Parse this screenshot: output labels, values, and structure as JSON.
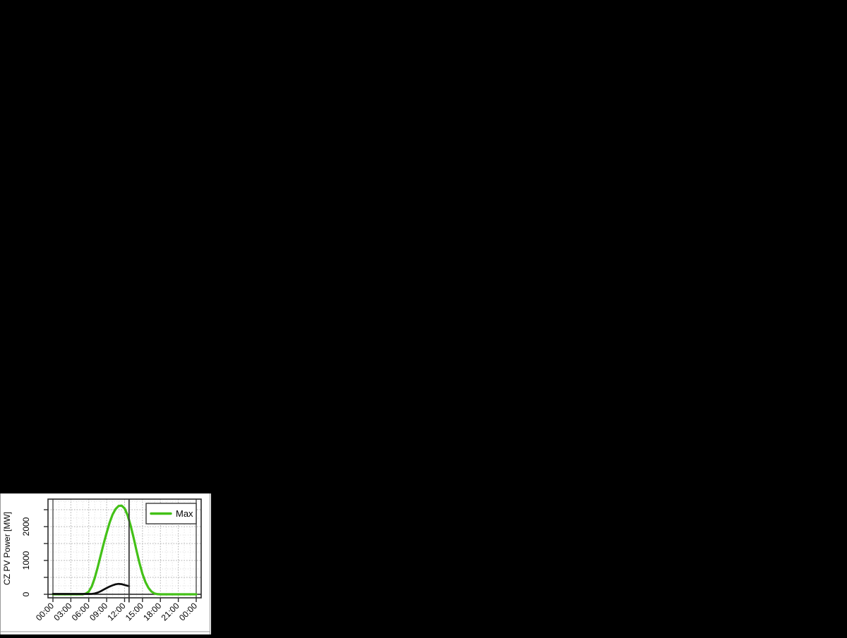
{
  "window": {
    "background": "#000000"
  },
  "panel": {
    "background": "#ffffff",
    "edge_color": "#9a9a9a"
  },
  "chart_data": {
    "type": "line",
    "title": "",
    "xlabel": "",
    "ylabel": "CZ PV Power [MW]",
    "x_unit": "hours",
    "xlim": [
      -0.8,
      24.8
    ],
    "ylim": [
      -100,
      2810
    ],
    "grid": "dotted, hourly vertical / 250 MW horizontal, darker every 3 h and 500 MW",
    "legend_position": "top-right",
    "x_ticks": {
      "hours": [
        0,
        3,
        6,
        9,
        12,
        15,
        18,
        21,
        24
      ],
      "labels": [
        "00:00",
        "03:00",
        "06:00",
        "09:00",
        "12:00",
        "15:00",
        "18:00",
        "21:00",
        "00:00"
      ]
    },
    "y_ticks": {
      "values": [
        0,
        500,
        1000,
        1500,
        2000,
        2500
      ],
      "labels": [
        "0",
        "",
        "1000",
        "",
        "2000",
        ""
      ]
    },
    "midnight_guide_hours": [
      0,
      24
    ],
    "now_marker_hour": 12.75,
    "zero_line_value": 0,
    "series": [
      {
        "name": "Max",
        "color": "#43c117",
        "width": 3.2,
        "x": [
          0,
          0.5,
          1,
          1.5,
          2,
          2.5,
          3,
          3.5,
          4,
          4.5,
          5,
          5.5,
          6,
          6.5,
          7,
          7.5,
          8,
          8.5,
          9,
          9.5,
          10,
          10.5,
          11,
          11.5,
          12,
          12.5,
          13,
          13.5,
          14,
          14.5,
          15,
          15.5,
          16,
          16.5,
          17,
          17.5,
          18,
          18.5,
          19,
          19.5,
          20,
          20.5,
          21,
          21.5,
          22,
          22.5,
          23,
          23.5,
          24
        ],
        "values": [
          0,
          0,
          0,
          0,
          0,
          0,
          0,
          0,
          0,
          0,
          0,
          20,
          80,
          230,
          480,
          800,
          1150,
          1500,
          1820,
          2120,
          2360,
          2520,
          2610,
          2620,
          2540,
          2340,
          2040,
          1680,
          1290,
          920,
          600,
          360,
          190,
          80,
          25,
          5,
          0,
          0,
          0,
          0,
          0,
          0,
          0,
          0,
          0,
          0,
          0,
          0,
          0
        ]
      },
      {
        "name": "",
        "color": "#0d0d0d",
        "width": 2.7,
        "x": [
          0,
          0.5,
          1,
          1.5,
          2,
          2.5,
          3,
          3.5,
          4,
          4.5,
          5,
          5.5,
          6,
          6.5,
          7,
          7.5,
          8,
          8.5,
          9,
          9.5,
          10,
          10.5,
          11,
          11.5,
          12,
          12.5,
          12.75
        ],
        "values": [
          10,
          10,
          10,
          10,
          10,
          10,
          10,
          10,
          10,
          10,
          10,
          10,
          10,
          12,
          25,
          50,
          90,
          140,
          185,
          230,
          265,
          295,
          308,
          300,
          275,
          252,
          240
        ]
      }
    ],
    "colors": {
      "plot_border": "#2b2b2b",
      "zero_line": "#1a1a1a",
      "midnight_line": "#4d4d4d",
      "now_line": "#3c3c3c",
      "grid_major": "#ababab",
      "grid_minor": "#d9d9d9",
      "legend_border": "#3a3a3a"
    }
  }
}
